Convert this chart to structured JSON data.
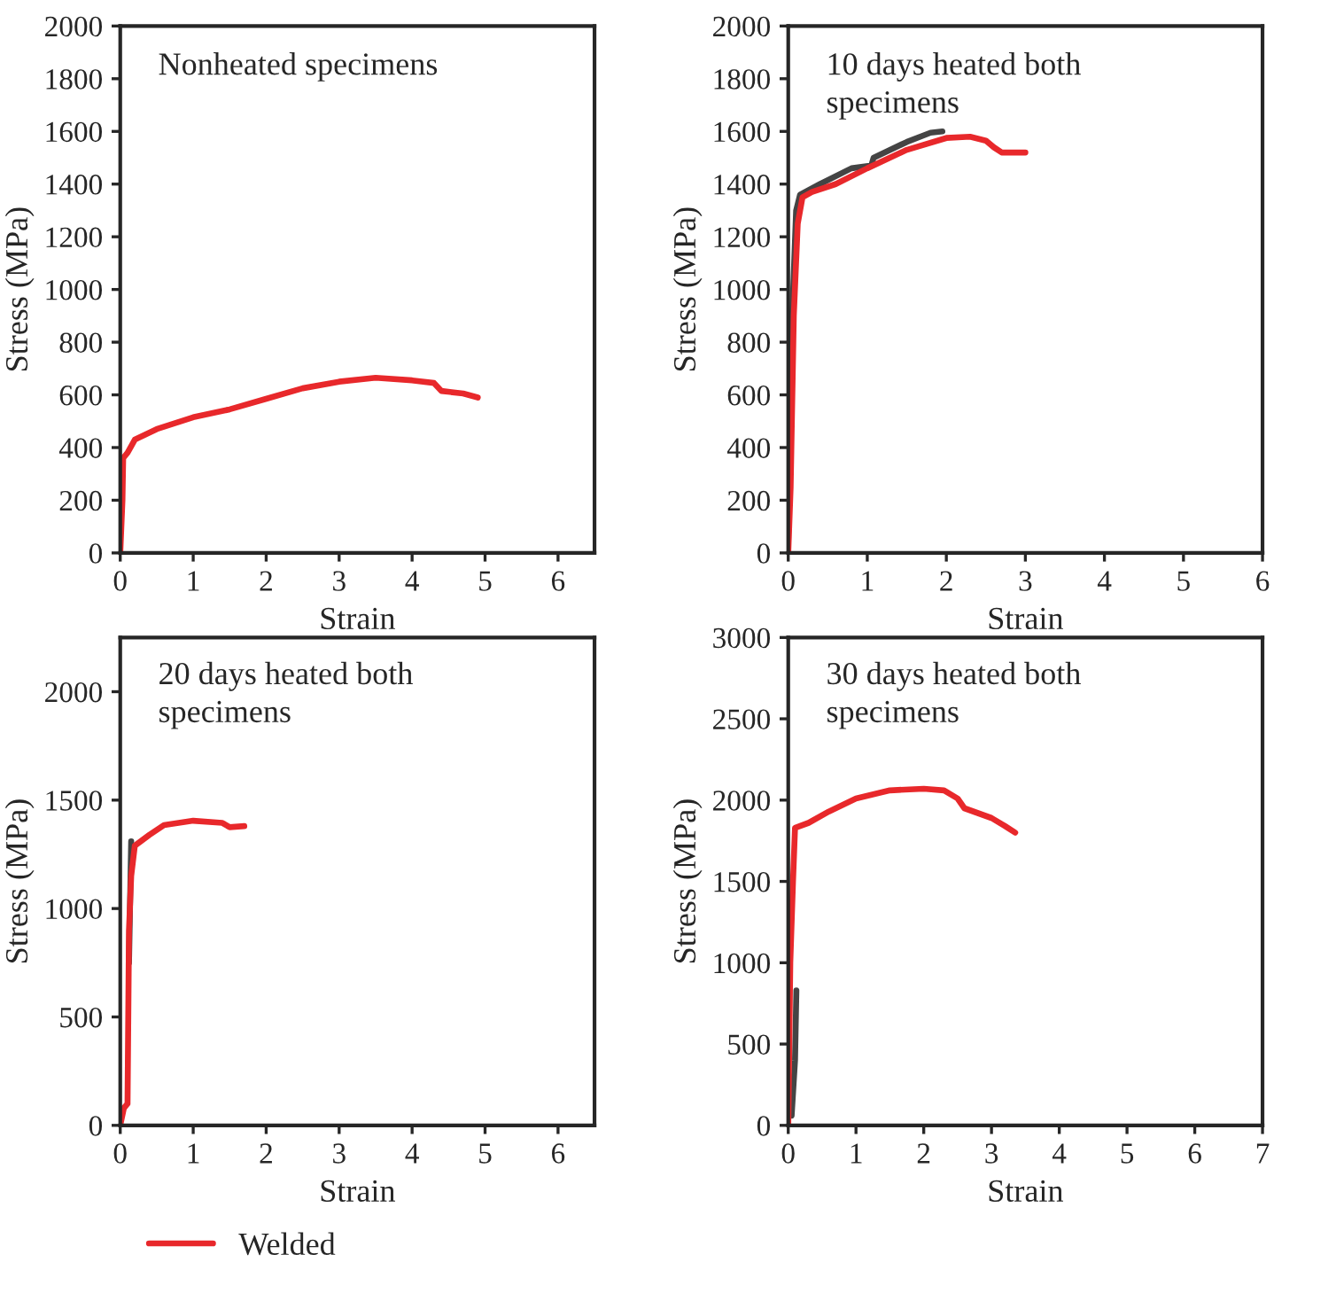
{
  "chart_data": [
    {
      "type": "line",
      "xlabel": "Strain",
      "ylabel": "Stress (MPa)",
      "annotations": [
        "Nonheated specimens"
      ],
      "xlim": [
        0,
        6.5
      ],
      "ylim": [
        0,
        2000
      ],
      "xticks": [
        0,
        1,
        2,
        3,
        4,
        5,
        6
      ],
      "yticks": [
        0,
        200,
        400,
        600,
        800,
        1000,
        1200,
        1400,
        1600,
        1800,
        2000
      ],
      "grid": false,
      "legend": false,
      "series": [
        {
          "color": "#e8282b",
          "x": [
            0,
            0.03,
            0.04,
            0.1,
            0.2,
            0.5,
            1,
            1.5,
            2,
            2.5,
            3,
            3.5,
            4,
            4.3,
            4.4,
            4.7,
            4.9
          ],
          "values": [
            0,
            200,
            360,
            380,
            430,
            470,
            515,
            545,
            585,
            625,
            650,
            665,
            655,
            645,
            615,
            605,
            590
          ]
        }
      ]
    },
    {
      "type": "line",
      "xlabel": "Strain",
      "ylabel": "Stress (MPa)",
      "annotations": [
        "10 days heated both\nspecimens"
      ],
      "xlim": [
        0,
        6
      ],
      "ylim": [
        0,
        2000
      ],
      "xticks": [
        0,
        1,
        2,
        3,
        4,
        5,
        6
      ],
      "yticks": [
        0,
        200,
        400,
        600,
        800,
        1000,
        1200,
        1400,
        1600,
        1800,
        2000
      ],
      "grid": false,
      "legend": false,
      "series": [
        {
          "color": "#444444",
          "x": [
            0,
            0.05,
            0.1,
            0.15,
            0.4,
            0.8,
            1.05,
            1.08,
            1.5,
            1.8,
            1.95
          ],
          "values": [
            50,
            900,
            1300,
            1360,
            1400,
            1460,
            1470,
            1500,
            1560,
            1595,
            1600
          ]
        },
        {
          "color": "#e8282b",
          "x": [
            0,
            0.03,
            0.07,
            0.12,
            0.18,
            0.3,
            0.6,
            1,
            1.5,
            2,
            2.3,
            2.5,
            2.6,
            2.7,
            3
          ],
          "values": [
            0,
            250,
            900,
            1250,
            1350,
            1370,
            1400,
            1460,
            1530,
            1575,
            1580,
            1565,
            1540,
            1520,
            1520
          ]
        }
      ]
    },
    {
      "type": "line",
      "xlabel": "Strain",
      "ylabel": "Stress (MPa)",
      "annotations": [
        "20 days heated both\nspecimens"
      ],
      "xlim": [
        0,
        6.5
      ],
      "ylim": [
        0,
        2250
      ],
      "xticks": [
        0,
        1,
        2,
        3,
        4,
        5,
        6
      ],
      "yticks": [
        0,
        500,
        1000,
        1500,
        2000
      ],
      "grid": false,
      "legend": "bottom",
      "series": [
        {
          "color": "#444444",
          "x": [
            0.12,
            0.15
          ],
          "values": [
            750,
            1310
          ]
        },
        {
          "name": "Welded",
          "color": "#e8282b",
          "x": [
            0,
            0.05,
            0.1,
            0.12,
            0.15,
            0.2,
            0.4,
            0.6,
            1,
            1.4,
            1.5,
            1.7
          ],
          "values": [
            0,
            80,
            100,
            900,
            1150,
            1290,
            1340,
            1385,
            1405,
            1395,
            1375,
            1380
          ]
        }
      ]
    },
    {
      "type": "line",
      "xlabel": "Strain",
      "ylabel": "Stress (MPa)",
      "annotations": [
        "30 days heated both\nspecimens"
      ],
      "xlim": [
        0,
        7
      ],
      "ylim": [
        0,
        3000
      ],
      "xticks": [
        0,
        1,
        2,
        3,
        4,
        5,
        6,
        7
      ],
      "yticks": [
        0,
        500,
        1000,
        1500,
        2000,
        2500,
        3000
      ],
      "grid": false,
      "legend": false,
      "series": [
        {
          "color": "#444444",
          "x": [
            0.05,
            0.1,
            0.12
          ],
          "values": [
            60,
            400,
            830
          ]
        },
        {
          "color": "#e8282b",
          "x": [
            0,
            0.03,
            0.07,
            0.1,
            0.3,
            0.6,
            1,
            1.5,
            2,
            2.3,
            2.5,
            2.6,
            3,
            3.2,
            3.35
          ],
          "values": [
            0,
            1000,
            1500,
            1830,
            1860,
            1930,
            2010,
            2060,
            2070,
            2060,
            2010,
            1950,
            1890,
            1840,
            1800
          ]
        }
      ]
    }
  ]
}
